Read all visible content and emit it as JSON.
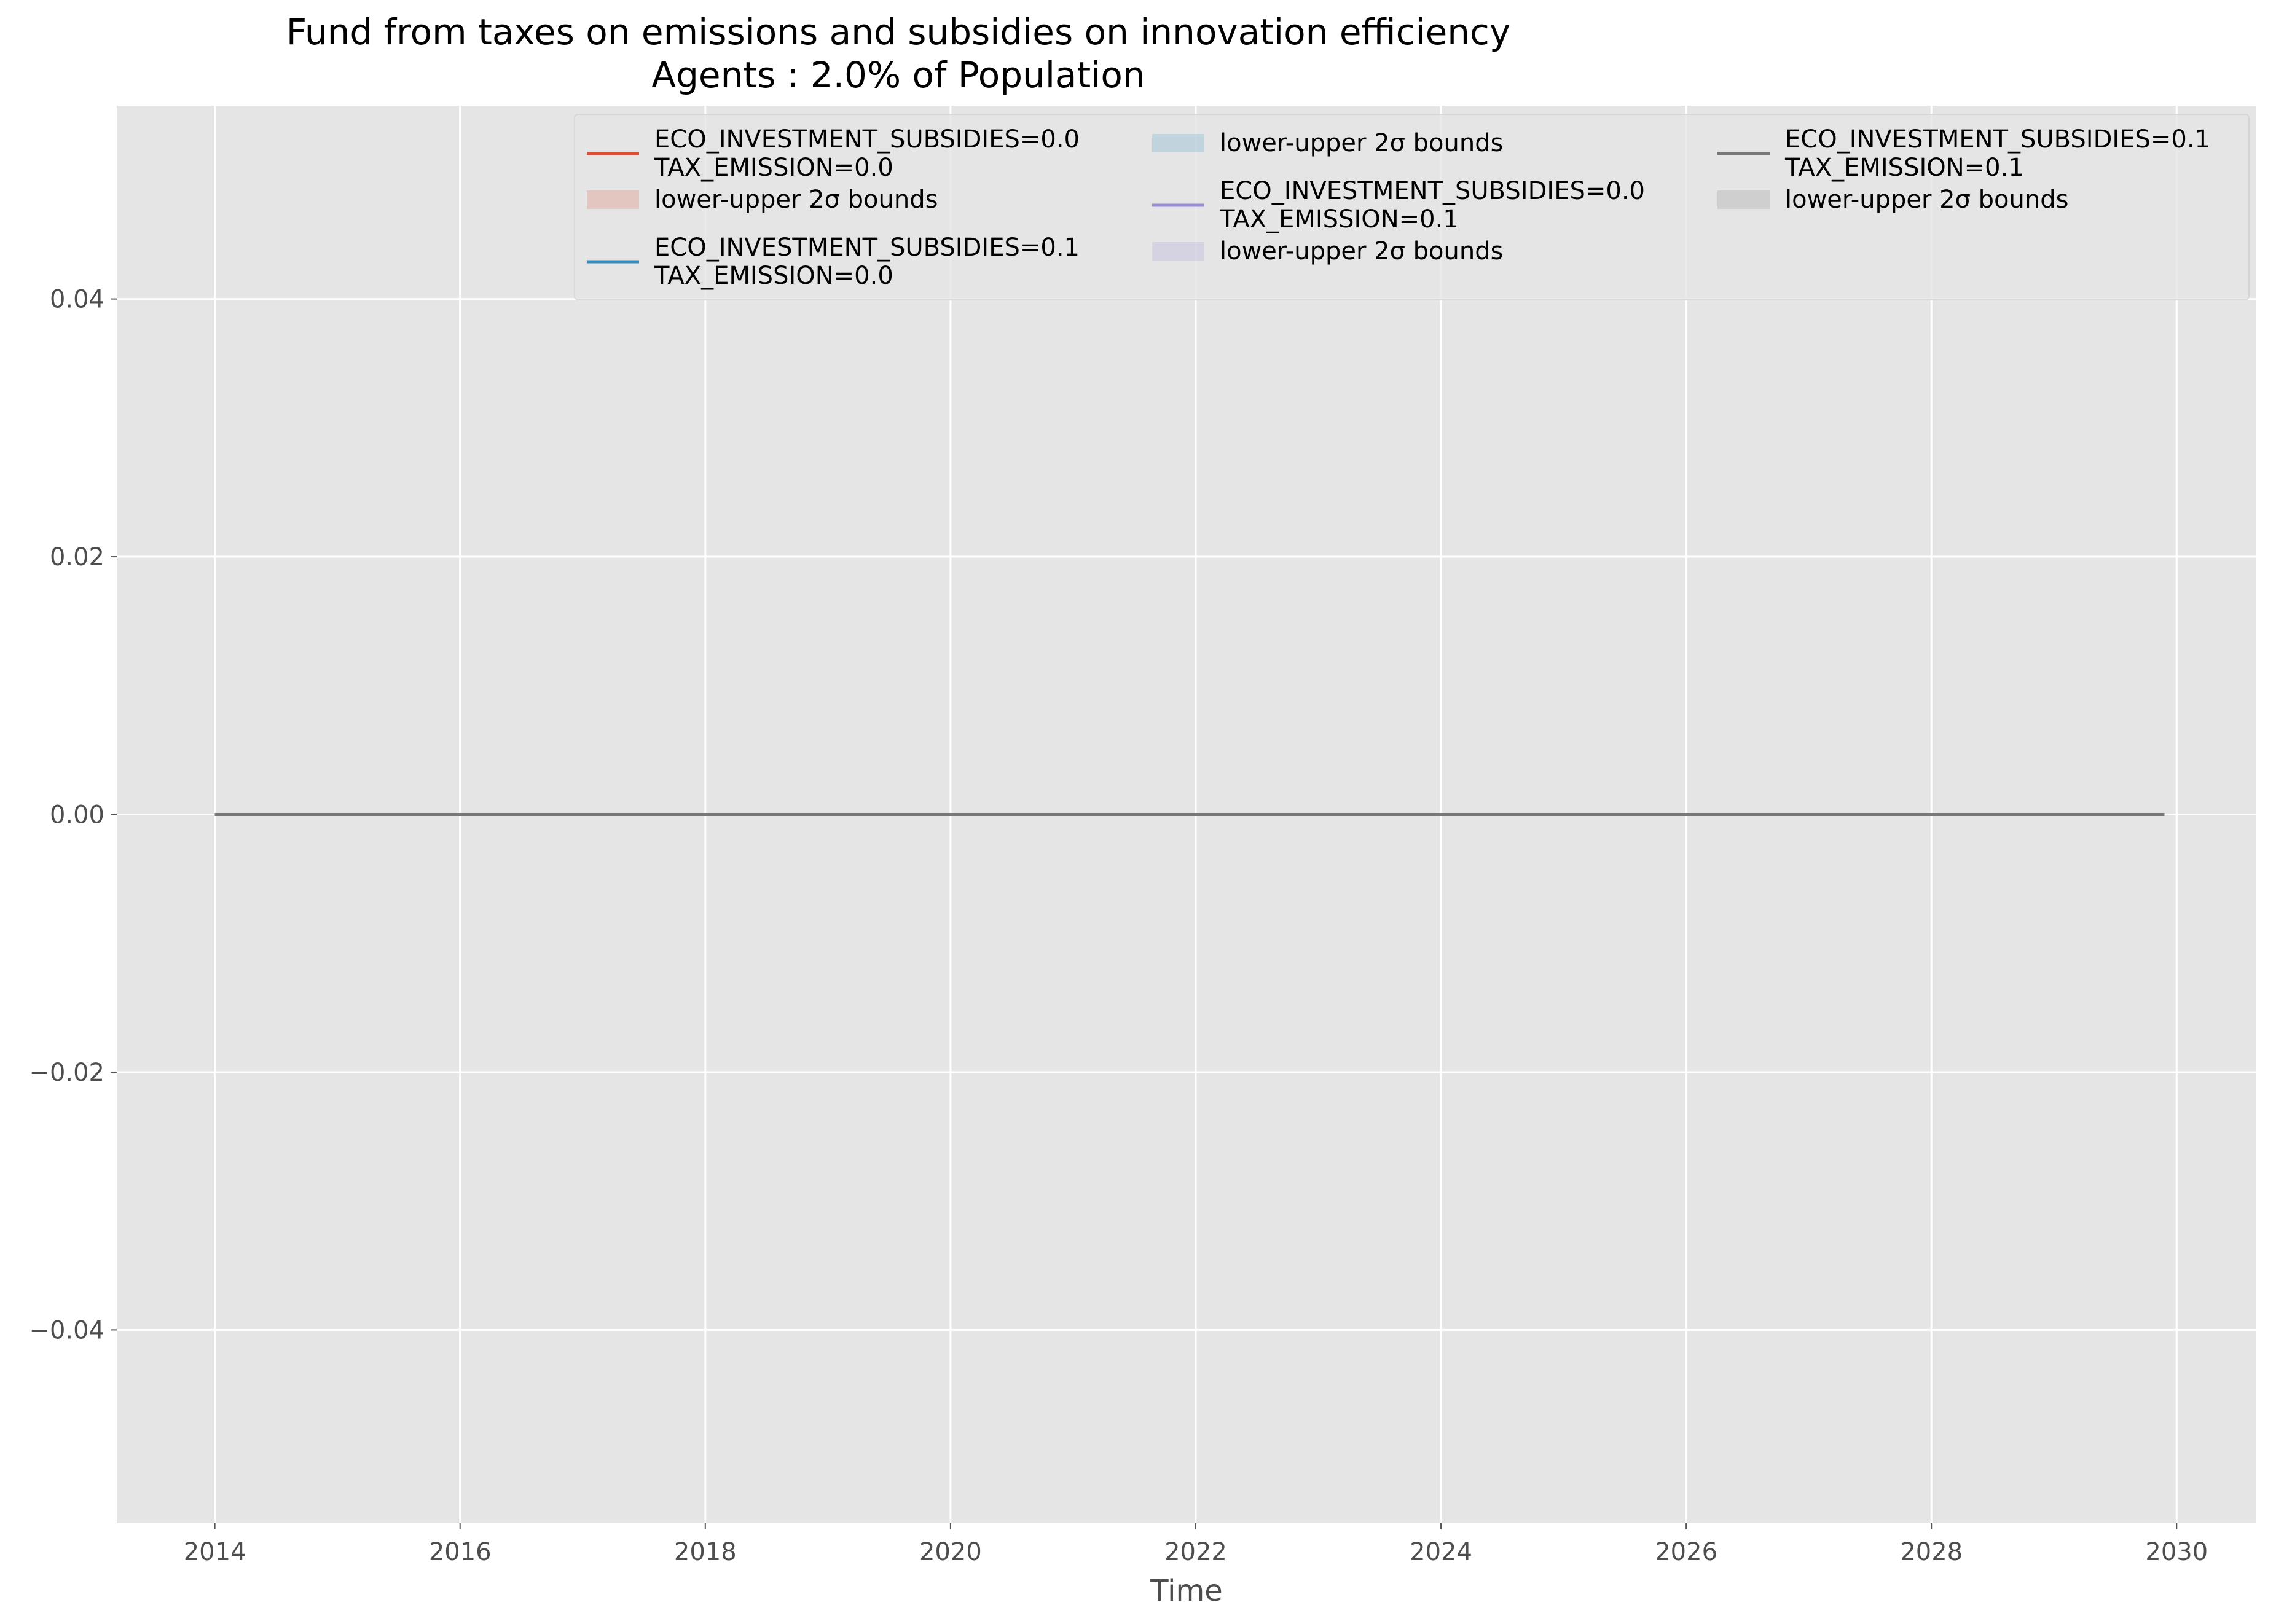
{
  "chart_data": {
    "type": "line",
    "title": "Fund from taxes on emissions and subsidies on innovation efficiency",
    "subtitle": "Agents : 2.0% of Population",
    "xlabel": "Time",
    "ylabel": "",
    "xlim": [
      2013.2,
      2030.65
    ],
    "ylim": [
      -0.055,
      0.055
    ],
    "x_ticks": [
      "2014",
      "2016",
      "2018",
      "2020",
      "2022",
      "2024",
      "2026",
      "2028",
      "2030"
    ],
    "y_ticks": [
      "0.04",
      "0.02",
      "0.00",
      "−0.02",
      "−0.04"
    ],
    "grid": true,
    "legend_position": "top",
    "series": [
      {
        "name": "ECO_INVESTMENT_SUBSIDIES=0.0\nTAX_EMISSION=0.0",
        "color": "#E24A33",
        "x": [
          2014,
          2029.9
        ],
        "y": [
          0,
          0
        ],
        "lower": [
          0,
          0
        ],
        "upper": [
          0,
          0
        ]
      },
      {
        "name": "ECO_INVESTMENT_SUBSIDIES=0.1\nTAX_EMISSION=0.0",
        "color": "#348ABD",
        "x": [
          2014,
          2029.9
        ],
        "y": [
          0,
          0
        ],
        "lower": [
          0,
          0
        ],
        "upper": [
          0,
          0
        ]
      },
      {
        "name": "ECO_INVESTMENT_SUBSIDIES=0.0\nTAX_EMISSION=0.1",
        "color": "#988ED5",
        "x": [
          2014,
          2029.9
        ],
        "y": [
          0,
          0
        ],
        "lower": [
          0,
          0
        ],
        "upper": [
          0,
          0
        ]
      },
      {
        "name": "ECO_INVESTMENT_SUBSIDIES=0.1\nTAX_EMISSION=0.1",
        "color": "#777777",
        "x": [
          2014,
          2029.9
        ],
        "y": [
          0,
          0
        ],
        "lower": [
          0,
          0
        ],
        "upper": [
          0,
          0
        ]
      }
    ],
    "bounds_label": "lower-upper 2σ bounds"
  }
}
